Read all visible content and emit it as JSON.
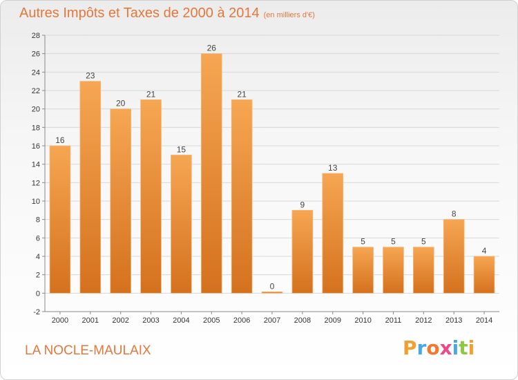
{
  "header": {
    "title": "Autres Impôts et Taxes de 2000 à 2014",
    "unit": "(en milliers d'€)"
  },
  "footer": {
    "commune": "LA NOCLE-MAULAIX",
    "logo_letters": [
      "P",
      "r",
      "o",
      "x",
      "i",
      "t",
      "i"
    ],
    "logo_colors": [
      "#f0a030",
      "#4aa8e0",
      "#f07830",
      "#e84a8a",
      "#4aa8e0",
      "#8cc840",
      "#f0a030"
    ]
  },
  "chart_data": {
    "type": "bar",
    "categories": [
      "2000",
      "2001",
      "2002",
      "2003",
      "2004",
      "2005",
      "2006",
      "2007",
      "2008",
      "2009",
      "2010",
      "2011",
      "2012",
      "2013",
      "2014"
    ],
    "values": [
      16,
      23,
      20,
      21,
      15,
      26,
      21,
      0,
      9,
      13,
      5,
      5,
      5,
      8,
      4
    ],
    "title": "Autres Impôts et Taxes de 2000 à 2014",
    "ylim": [
      -2,
      28
    ],
    "yticks": [
      -2,
      0,
      2,
      4,
      6,
      8,
      10,
      12,
      14,
      16,
      18,
      20,
      22,
      24,
      26,
      28
    ],
    "grid": true,
    "bar_color_light": "#f6a652",
    "bar_color_dark": "#d4711e"
  }
}
